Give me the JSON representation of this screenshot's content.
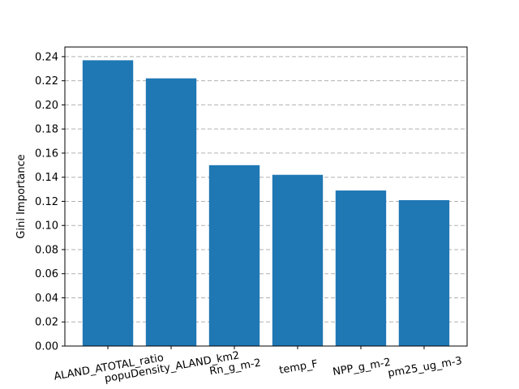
{
  "chart_data": {
    "type": "bar",
    "title": "",
    "xlabel": "",
    "ylabel": "Gini Importance",
    "categories": [
      "ALAND_ATOTAL_ratio",
      "popuDensity_ALAND_km2",
      "Rn_g_m-2",
      "temp_F",
      "NPP_g_m-2",
      "pm25_ug_m-3"
    ],
    "values": [
      0.237,
      0.222,
      0.15,
      0.142,
      0.129,
      0.121
    ],
    "ylim": [
      0,
      0.248
    ],
    "yticks": [
      "0.00",
      "0.02",
      "0.04",
      "0.06",
      "0.08",
      "0.10",
      "0.12",
      "0.14",
      "0.16",
      "0.18",
      "0.20",
      "0.22",
      "0.24"
    ],
    "grid": "y, dashed",
    "colors": {
      "bar": "#1f77b4",
      "grid": "#b0b0b0",
      "axis": "#000000"
    }
  }
}
